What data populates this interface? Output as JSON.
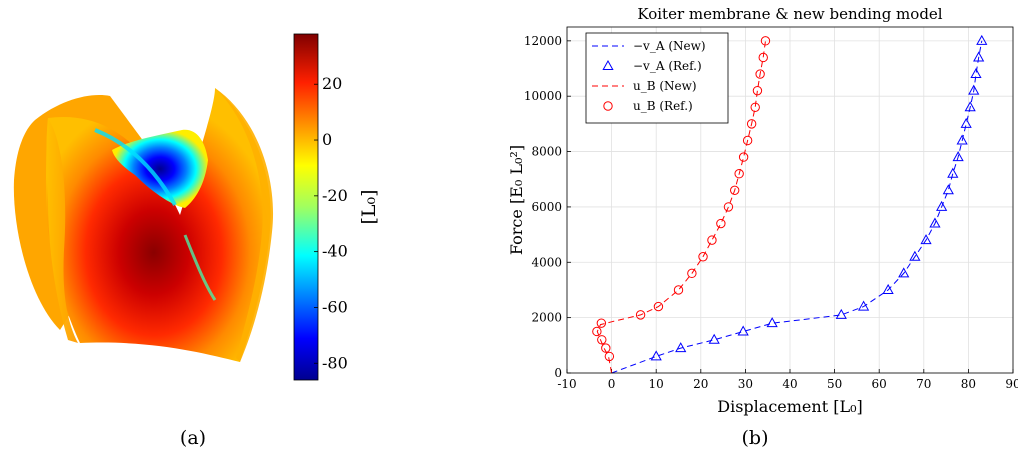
{
  "captions": {
    "a": "(a)",
    "b": "(b)"
  },
  "colorbar": {
    "label": "[L₀]",
    "ticks": [
      "20",
      "0",
      "-20",
      "-40",
      "-60",
      "-80"
    ],
    "tick_values": [
      20,
      0,
      -20,
      -40,
      -60,
      -80
    ],
    "range": [
      -86,
      38
    ],
    "colormap": "jet"
  },
  "chart_data": {
    "type": "line",
    "title": "Koiter membrane & new bending model",
    "xlabel": "Displacement [L₀]",
    "ylabel": "Force [E₀ L₀²]",
    "xlim": [
      -10,
      90
    ],
    "ylim": [
      0,
      12500
    ],
    "xticks": [
      -10,
      0,
      10,
      20,
      30,
      40,
      50,
      60,
      70,
      80,
      90
    ],
    "yticks": [
      0,
      2000,
      4000,
      6000,
      8000,
      10000,
      12000
    ],
    "grid": true,
    "legend_position": "top-left",
    "series": [
      {
        "name": "−v_A (New)",
        "style": "dashed",
        "color": "#0000ff",
        "x": [
          0,
          10,
          15.5,
          23,
          29.5,
          36,
          44,
          51.5,
          56.5,
          62,
          65.5,
          68,
          70.5,
          72.5,
          74,
          75.5,
          76.5,
          77.7,
          78.6,
          79.5,
          80.4,
          81.2,
          81.7,
          82.3,
          83
        ],
        "y": [
          0,
          600,
          900,
          1200,
          1500,
          1800,
          1950,
          2100,
          2400,
          3000,
          3600,
          4200,
          4800,
          5400,
          6000,
          6600,
          7200,
          7800,
          8400,
          9000,
          9600,
          10200,
          10800,
          11400,
          12000
        ]
      },
      {
        "name": "−v_A (Ref.)",
        "style": "triangle",
        "color": "#0000ff",
        "x": [
          10,
          15.5,
          23,
          29.5,
          36,
          51.5,
          56.5,
          62,
          65.5,
          68,
          70.5,
          72.5,
          74,
          75.5,
          76.5,
          77.7,
          78.6,
          79.5,
          80.4,
          81.2,
          81.7,
          82.3,
          83
        ],
        "y": [
          600,
          900,
          1200,
          1500,
          1800,
          2100,
          2400,
          3000,
          3600,
          4200,
          4800,
          5400,
          6000,
          6600,
          7200,
          7800,
          8400,
          9000,
          9600,
          10200,
          10800,
          11400,
          12000
        ]
      },
      {
        "name": "u_B (New)",
        "style": "dashed",
        "color": "#ff0000",
        "x": [
          0,
          -0.7,
          -1.7,
          -2.5,
          -3.2,
          -2.5,
          0,
          6.5,
          10.5,
          15,
          18,
          20.5,
          22.5,
          24.5,
          26.2,
          27.6,
          28.6,
          29.6,
          30.5,
          31.4,
          32.2,
          32.7,
          33.3,
          34,
          34.5
        ],
        "y": [
          0,
          600,
          900,
          1200,
          1500,
          1750,
          1850,
          2100,
          2400,
          3000,
          3600,
          4200,
          4800,
          5400,
          6000,
          6600,
          7200,
          7800,
          8400,
          9000,
          9600,
          10200,
          10800,
          11400,
          12000
        ]
      },
      {
        "name": "u_B (Ref.)",
        "style": "circle",
        "color": "#ff0000",
        "x": [
          -0.5,
          -1.3,
          -2.2,
          -3.3,
          -2.3,
          6.5,
          10.5,
          15,
          18,
          20.5,
          22.5,
          24.5,
          26.2,
          27.6,
          28.6,
          29.6,
          30.5,
          31.4,
          32.2,
          32.7,
          33.3,
          34,
          34.5
        ],
        "y": [
          600,
          900,
          1200,
          1500,
          1800,
          2100,
          2400,
          3000,
          3600,
          4200,
          4800,
          5400,
          6000,
          6600,
          7200,
          7800,
          8400,
          9000,
          9600,
          10200,
          10800,
          11400,
          12000
        ]
      }
    ]
  }
}
